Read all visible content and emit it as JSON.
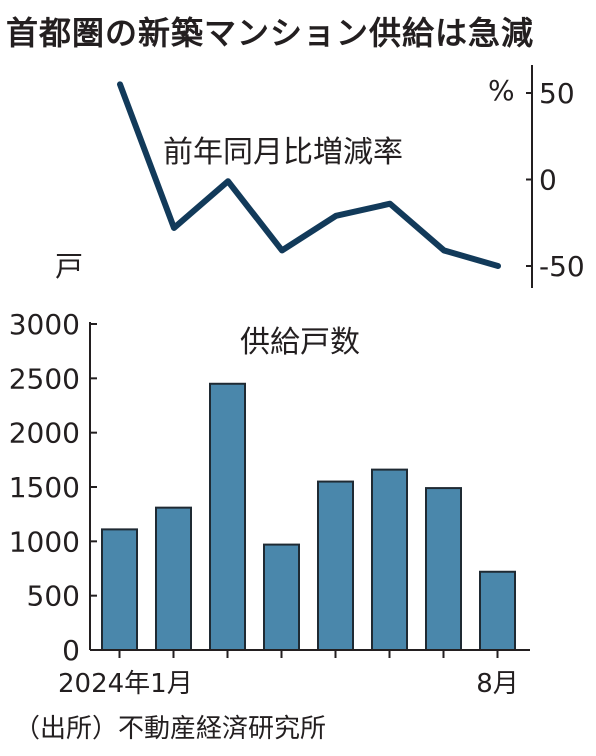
{
  "title": "首都圏の新築マンション供給は急減",
  "source": "（出所）不動産経済研究所",
  "colors": {
    "line": "#123a5a",
    "bar_fill": "#4a87ab",
    "bar_stroke": "#1f2a33",
    "axis": "#231f20"
  },
  "chart_data": [
    {
      "type": "line",
      "title": "前年同月比増減率",
      "unit_label": "%",
      "x": [
        "2024-01",
        "2024-02",
        "2024-03",
        "2024-04",
        "2024-05",
        "2024-06",
        "2024-07",
        "2024-08"
      ],
      "values": [
        55,
        -28,
        -1,
        -41,
        -21,
        -14,
        -41,
        -50
      ],
      "ylim": [
        -60,
        60
      ],
      "yticks": [
        50,
        0,
        -50
      ],
      "ytick_labels": [
        "50",
        "0",
        "-50"
      ],
      "y_axis_side": "right",
      "grid": false
    },
    {
      "type": "bar",
      "title": "供給戸数",
      "unit_label": "戸",
      "categories": [
        "2024-01",
        "2024-02",
        "2024-03",
        "2024-04",
        "2024-05",
        "2024-06",
        "2024-07",
        "2024-08"
      ],
      "x_tick_labels": [
        "2024年1月",
        "",
        "",
        "",
        "",
        "",
        "",
        "8月"
      ],
      "values": [
        1110,
        1310,
        2450,
        970,
        1550,
        1660,
        1490,
        720
      ],
      "ylim": [
        0,
        3000
      ],
      "yticks": [
        0,
        500,
        1000,
        1500,
        2000,
        2500,
        3000
      ],
      "ytick_labels": [
        "0",
        "500",
        "1000",
        "1500",
        "2000",
        "2500",
        "3000"
      ],
      "y_axis_side": "left",
      "grid": false
    }
  ]
}
